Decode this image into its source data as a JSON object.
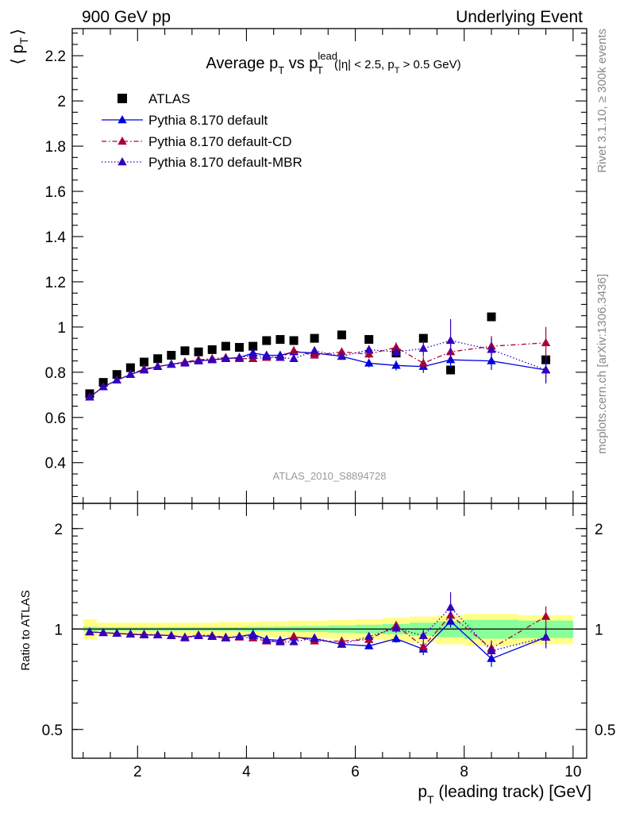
{
  "header": {
    "left": "900 GeV pp",
    "right": "Underlying Event"
  },
  "side_labels": {
    "top": "Rivet 3.1.10, ≥ 300k events",
    "bottom": "mcplots.cern.ch [arXiv:1306.3436]"
  },
  "watermark": "ATLAS_2010_S8894728",
  "title": {
    "prefix": "Average p",
    "sub1": "T",
    "middle": " vs p",
    "sup": "lead",
    "sub2": "T",
    "cut_open": "(|η| < 2.5, p",
    "cut_sub": "T",
    "cut_close": " > 0.5 GeV)"
  },
  "y_axis": {
    "label_open": "⟨ p",
    "label_sub": "T",
    "label_close": "⟩"
  },
  "ratio_axis": {
    "label": "Ratio to ATLAS"
  },
  "x_axis": {
    "label_main": "p",
    "label_sub": "T",
    "label_rest": " (leading track) [GeV]"
  },
  "colors": {
    "atlas": "#000000",
    "default": "#0000dd",
    "cd": "#aa0033",
    "mbr": "#3300bb",
    "band_outer": "#ffff88",
    "band_inner": "#88ff99"
  },
  "chart_data": [
    {
      "type": "scatter",
      "panel": "main",
      "xlim": [
        0.8,
        10.25
      ],
      "ylim": [
        0.22,
        2.32
      ],
      "yticks": [
        0.4,
        0.6,
        0.8,
        1.0,
        1.2,
        1.4,
        1.6,
        1.8,
        2.0,
        2.2
      ],
      "ytick_labels": [
        "0.4",
        "0.6",
        "0.8",
        "1",
        "1.2",
        "1.4",
        "1.6",
        "1.8",
        "2",
        "2.2"
      ],
      "legend_position": "top-left",
      "x": [
        1.12,
        1.37,
        1.62,
        1.87,
        2.12,
        2.37,
        2.62,
        2.87,
        3.12,
        3.37,
        3.62,
        3.87,
        4.12,
        4.37,
        4.62,
        4.87,
        5.25,
        5.75,
        6.25,
        6.75,
        7.25,
        7.75,
        8.5,
        9.5
      ],
      "series": [
        {
          "name": "ATLAS",
          "marker": "square",
          "line": "none",
          "values": [
            0.705,
            0.755,
            0.79,
            0.82,
            0.845,
            0.86,
            0.875,
            0.895,
            0.89,
            0.9,
            0.915,
            0.91,
            0.915,
            0.94,
            0.945,
            0.94,
            0.95,
            0.965,
            0.945,
            0.885,
            0.95,
            0.81,
            1.045,
            0.855
          ]
        },
        {
          "name": "Pythia 8.170 default",
          "marker": "triangle",
          "line": "solid",
          "values": [
            0.69,
            0.735,
            0.765,
            0.79,
            0.81,
            0.825,
            0.835,
            0.845,
            0.85,
            0.855,
            0.86,
            0.865,
            0.885,
            0.875,
            0.875,
            0.89,
            0.885,
            0.87,
            0.84,
            0.83,
            0.825,
            0.855,
            0.85,
            0.81
          ],
          "errors": [
            0.005,
            0.005,
            0.005,
            0.005,
            0.005,
            0.005,
            0.005,
            0.006,
            0.006,
            0.006,
            0.007,
            0.007,
            0.008,
            0.009,
            0.01,
            0.011,
            0.012,
            0.015,
            0.018,
            0.022,
            0.028,
            0.035,
            0.04,
            0.055
          ]
        },
        {
          "name": "Pythia 8.170 default-CD",
          "marker": "triangle",
          "line": "dashdot",
          "values": [
            0.69,
            0.735,
            0.765,
            0.79,
            0.815,
            0.825,
            0.835,
            0.845,
            0.855,
            0.86,
            0.865,
            0.86,
            0.86,
            0.865,
            0.865,
            0.895,
            0.875,
            0.89,
            0.88,
            0.91,
            0.84,
            0.89,
            0.915,
            0.93
          ],
          "errors": [
            0.005,
            0.005,
            0.005,
            0.005,
            0.005,
            0.005,
            0.005,
            0.006,
            0.006,
            0.006,
            0.007,
            0.007,
            0.008,
            0.009,
            0.01,
            0.011,
            0.012,
            0.015,
            0.018,
            0.022,
            0.028,
            0.035,
            0.045,
            0.07
          ]
        },
        {
          "name": "Pythia 8.170 default-MBR",
          "marker": "triangle",
          "line": "dotted",
          "values": [
            0.69,
            0.735,
            0.765,
            0.79,
            0.81,
            0.825,
            0.835,
            0.84,
            0.85,
            0.855,
            0.86,
            0.865,
            0.875,
            0.87,
            0.865,
            0.86,
            0.895,
            0.87,
            0.9,
            0.89,
            0.905,
            0.94,
            0.9,
            0.81
          ],
          "errors": [
            0.005,
            0.005,
            0.005,
            0.005,
            0.005,
            0.005,
            0.005,
            0.006,
            0.006,
            0.006,
            0.007,
            0.007,
            0.008,
            0.009,
            0.01,
            0.011,
            0.012,
            0.015,
            0.018,
            0.025,
            0.035,
            0.095,
            0.05,
            0.06
          ]
        }
      ]
    },
    {
      "type": "scatter",
      "panel": "ratio",
      "xlim": [
        0.8,
        10.25
      ],
      "ylim": [
        0.41,
        2.38
      ],
      "yscale": "log",
      "yticks": [
        0.5,
        1,
        2
      ],
      "ytick_labels": [
        "0.5",
        "1",
        "2"
      ],
      "xticks": [
        2,
        4,
        6,
        8,
        10
      ],
      "xtick_labels": [
        "2",
        "4",
        "6",
        "8",
        "10"
      ],
      "x": [
        1.12,
        1.37,
        1.62,
        1.87,
        2.12,
        2.37,
        2.62,
        2.87,
        3.12,
        3.37,
        3.62,
        3.87,
        4.12,
        4.37,
        4.62,
        4.87,
        5.25,
        5.75,
        6.25,
        6.75,
        7.25,
        7.75,
        8.5,
        9.5
      ],
      "bin_edges": [
        1.0,
        1.25,
        1.5,
        1.75,
        2.0,
        2.25,
        2.5,
        2.75,
        3.0,
        3.25,
        3.5,
        3.75,
        4.0,
        4.25,
        4.5,
        4.75,
        5.0,
        5.5,
        6.0,
        6.5,
        7.0,
        7.5,
        8.0,
        9.0,
        10.0
      ],
      "band_stat": [
        0.015,
        0.012,
        0.012,
        0.012,
        0.012,
        0.012,
        0.012,
        0.012,
        0.012,
        0.012,
        0.013,
        0.013,
        0.015,
        0.016,
        0.017,
        0.018,
        0.02,
        0.025,
        0.03,
        0.035,
        0.045,
        0.055,
        0.065,
        0.06
      ],
      "band_total": [
        0.07,
        0.045,
        0.045,
        0.045,
        0.045,
        0.045,
        0.045,
        0.045,
        0.045,
        0.045,
        0.05,
        0.05,
        0.05,
        0.055,
        0.055,
        0.06,
        0.06,
        0.065,
        0.07,
        0.08,
        0.09,
        0.1,
        0.11,
        0.1
      ],
      "series": [
        {
          "name": "Pythia 8.170 default",
          "values": [
            0.98,
            0.975,
            0.97,
            0.965,
            0.96,
            0.96,
            0.955,
            0.945,
            0.955,
            0.95,
            0.94,
            0.95,
            0.965,
            0.93,
            0.925,
            0.945,
            0.935,
            0.9,
            0.89,
            0.935,
            0.87,
            1.055,
            0.815,
            0.945
          ],
          "errors": [
            0.005,
            0.005,
            0.005,
            0.005,
            0.005,
            0.005,
            0.006,
            0.006,
            0.007,
            0.007,
            0.008,
            0.008,
            0.009,
            0.01,
            0.011,
            0.012,
            0.013,
            0.016,
            0.02,
            0.025,
            0.035,
            0.045,
            0.045,
            0.065
          ]
        },
        {
          "name": "Pythia 8.170 default-CD",
          "values": [
            0.98,
            0.975,
            0.97,
            0.965,
            0.965,
            0.96,
            0.955,
            0.945,
            0.96,
            0.955,
            0.945,
            0.945,
            0.94,
            0.92,
            0.915,
            0.95,
            0.92,
            0.92,
            0.93,
            1.025,
            0.885,
            1.1,
            0.875,
            1.09
          ],
          "errors": [
            0.005,
            0.005,
            0.005,
            0.005,
            0.005,
            0.005,
            0.006,
            0.006,
            0.007,
            0.007,
            0.008,
            0.008,
            0.009,
            0.01,
            0.011,
            0.012,
            0.013,
            0.016,
            0.02,
            0.025,
            0.035,
            0.045,
            0.05,
            0.08
          ]
        },
        {
          "name": "Pythia 8.170 default-MBR",
          "values": [
            0.98,
            0.975,
            0.97,
            0.965,
            0.96,
            0.96,
            0.955,
            0.94,
            0.955,
            0.95,
            0.94,
            0.95,
            0.955,
            0.925,
            0.915,
            0.915,
            0.94,
            0.9,
            0.95,
            1.005,
            0.955,
            1.16,
            0.86,
            0.945
          ],
          "errors": [
            0.005,
            0.005,
            0.005,
            0.005,
            0.005,
            0.005,
            0.006,
            0.006,
            0.007,
            0.007,
            0.008,
            0.008,
            0.009,
            0.01,
            0.011,
            0.012,
            0.013,
            0.016,
            0.02,
            0.03,
            0.04,
            0.13,
            0.055,
            0.07
          ]
        }
      ]
    }
  ]
}
